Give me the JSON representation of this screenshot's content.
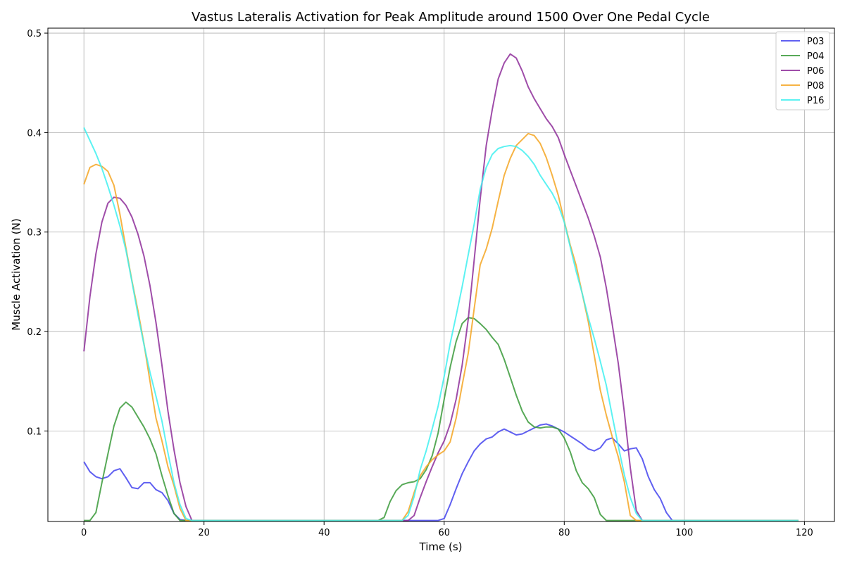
{
  "chart_data": {
    "type": "line",
    "title": "Vastus Lateralis Activation for Peak Amplitude around 1500 Over One Pedal Cycle",
    "xlabel": "Time (s)",
    "ylabel": "Muscle Activation (N)",
    "xlim": [
      -6,
      125
    ],
    "ylim": [
      0.009,
      0.505
    ],
    "x_ticks": [
      0,
      20,
      40,
      60,
      80,
      100,
      120
    ],
    "y_ticks": [
      0.1,
      0.2,
      0.3,
      0.4,
      0.5
    ],
    "x_tick_labels": [
      "0",
      "20",
      "40",
      "60",
      "80",
      "100",
      "120"
    ],
    "y_tick_labels": [
      "0.1",
      "0.2",
      "0.3",
      "0.4",
      "0.5"
    ],
    "grid": true,
    "legend_position": "top-right",
    "series": [
      {
        "name": "P03",
        "color": "#4444ee",
        "points": [
          [
            0,
            0.069
          ],
          [
            1,
            0.059
          ],
          [
            2,
            0.054
          ],
          [
            3,
            0.052
          ],
          [
            4,
            0.054
          ],
          [
            5,
            0.06
          ],
          [
            6,
            0.062
          ],
          [
            7,
            0.053
          ],
          [
            8,
            0.043
          ],
          [
            9,
            0.042
          ],
          [
            10,
            0.048
          ],
          [
            11,
            0.048
          ],
          [
            12,
            0.041
          ],
          [
            13,
            0.038
          ],
          [
            14,
            0.03
          ],
          [
            15,
            0.017
          ],
          [
            16,
            0.011
          ],
          [
            17,
            0.01
          ],
          [
            18,
            0.01
          ],
          [
            59,
            0.01
          ],
          [
            60,
            0.012
          ],
          [
            61,
            0.026
          ],
          [
            62,
            0.042
          ],
          [
            63,
            0.057
          ],
          [
            64,
            0.069
          ],
          [
            65,
            0.08
          ],
          [
            66,
            0.087
          ],
          [
            67,
            0.092
          ],
          [
            68,
            0.094
          ],
          [
            69,
            0.099
          ],
          [
            70,
            0.102
          ],
          [
            71,
            0.099
          ],
          [
            72,
            0.096
          ],
          [
            73,
            0.097
          ],
          [
            74,
            0.1
          ],
          [
            75,
            0.103
          ],
          [
            76,
            0.106
          ],
          [
            77,
            0.107
          ],
          [
            78,
            0.105
          ],
          [
            79,
            0.102
          ],
          [
            80,
            0.099
          ],
          [
            81,
            0.095
          ],
          [
            82,
            0.091
          ],
          [
            83,
            0.087
          ],
          [
            84,
            0.082
          ],
          [
            85,
            0.08
          ],
          [
            86,
            0.083
          ],
          [
            87,
            0.091
          ],
          [
            88,
            0.093
          ],
          [
            89,
            0.087
          ],
          [
            90,
            0.08
          ],
          [
            91,
            0.082
          ],
          [
            92,
            0.083
          ],
          [
            93,
            0.072
          ],
          [
            94,
            0.054
          ],
          [
            95,
            0.041
          ],
          [
            96,
            0.032
          ],
          [
            97,
            0.018
          ],
          [
            98,
            0.01
          ],
          [
            119,
            0.01
          ]
        ]
      },
      {
        "name": "P04",
        "color": "#3a9a3a",
        "points": [
          [
            0,
            0.01
          ],
          [
            1,
            0.01
          ],
          [
            2,
            0.018
          ],
          [
            3,
            0.048
          ],
          [
            4,
            0.077
          ],
          [
            5,
            0.105
          ],
          [
            6,
            0.123
          ],
          [
            7,
            0.129
          ],
          [
            8,
            0.124
          ],
          [
            9,
            0.114
          ],
          [
            10,
            0.104
          ],
          [
            11,
            0.092
          ],
          [
            12,
            0.077
          ],
          [
            13,
            0.055
          ],
          [
            14,
            0.035
          ],
          [
            15,
            0.017
          ],
          [
            16,
            0.01
          ],
          [
            49,
            0.01
          ],
          [
            50,
            0.013
          ],
          [
            51,
            0.029
          ],
          [
            52,
            0.04
          ],
          [
            53,
            0.046
          ],
          [
            54,
            0.048
          ],
          [
            55,
            0.049
          ],
          [
            56,
            0.052
          ],
          [
            57,
            0.061
          ],
          [
            58,
            0.075
          ],
          [
            59,
            0.098
          ],
          [
            60,
            0.132
          ],
          [
            61,
            0.164
          ],
          [
            62,
            0.19
          ],
          [
            63,
            0.208
          ],
          [
            64,
            0.214
          ],
          [
            65,
            0.213
          ],
          [
            66,
            0.208
          ],
          [
            67,
            0.202
          ],
          [
            68,
            0.194
          ],
          [
            69,
            0.187
          ],
          [
            70,
            0.172
          ],
          [
            71,
            0.154
          ],
          [
            72,
            0.136
          ],
          [
            73,
            0.12
          ],
          [
            74,
            0.109
          ],
          [
            75,
            0.104
          ],
          [
            76,
            0.103
          ],
          [
            77,
            0.104
          ],
          [
            78,
            0.104
          ],
          [
            79,
            0.102
          ],
          [
            80,
            0.093
          ],
          [
            81,
            0.079
          ],
          [
            82,
            0.06
          ],
          [
            83,
            0.048
          ],
          [
            84,
            0.042
          ],
          [
            85,
            0.033
          ],
          [
            86,
            0.016
          ],
          [
            87,
            0.01
          ],
          [
            119,
            0.01
          ]
        ]
      },
      {
        "name": "P06",
        "color": "#8e2e9a",
        "points": [
          [
            0,
            0.18
          ],
          [
            1,
            0.235
          ],
          [
            2,
            0.278
          ],
          [
            3,
            0.31
          ],
          [
            4,
            0.329
          ],
          [
            5,
            0.335
          ],
          [
            6,
            0.334
          ],
          [
            7,
            0.327
          ],
          [
            8,
            0.315
          ],
          [
            9,
            0.298
          ],
          [
            10,
            0.276
          ],
          [
            11,
            0.246
          ],
          [
            12,
            0.209
          ],
          [
            13,
            0.166
          ],
          [
            14,
            0.12
          ],
          [
            15,
            0.081
          ],
          [
            16,
            0.048
          ],
          [
            17,
            0.024
          ],
          [
            18,
            0.01
          ],
          [
            53,
            0.01
          ],
          [
            54,
            0.01
          ],
          [
            55,
            0.015
          ],
          [
            56,
            0.033
          ],
          [
            57,
            0.049
          ],
          [
            58,
            0.064
          ],
          [
            59,
            0.078
          ],
          [
            60,
            0.09
          ],
          [
            61,
            0.107
          ],
          [
            62,
            0.132
          ],
          [
            63,
            0.166
          ],
          [
            64,
            0.212
          ],
          [
            65,
            0.272
          ],
          [
            66,
            0.333
          ],
          [
            67,
            0.387
          ],
          [
            68,
            0.423
          ],
          [
            69,
            0.454
          ],
          [
            70,
            0.47
          ],
          [
            71,
            0.479
          ],
          [
            72,
            0.475
          ],
          [
            73,
            0.462
          ],
          [
            74,
            0.446
          ],
          [
            75,
            0.434
          ],
          [
            76,
            0.424
          ],
          [
            77,
            0.414
          ],
          [
            78,
            0.406
          ],
          [
            79,
            0.395
          ],
          [
            80,
            0.378
          ],
          [
            81,
            0.362
          ],
          [
            82,
            0.346
          ],
          [
            83,
            0.33
          ],
          [
            84,
            0.314
          ],
          [
            85,
            0.296
          ],
          [
            86,
            0.275
          ],
          [
            87,
            0.244
          ],
          [
            88,
            0.207
          ],
          [
            89,
            0.168
          ],
          [
            90,
            0.119
          ],
          [
            91,
            0.063
          ],
          [
            92,
            0.02
          ],
          [
            93,
            0.01
          ],
          [
            119,
            0.01
          ]
        ]
      },
      {
        "name": "P08",
        "color": "#f5a623",
        "points": [
          [
            0,
            0.348
          ],
          [
            1,
            0.365
          ],
          [
            2,
            0.368
          ],
          [
            3,
            0.366
          ],
          [
            4,
            0.361
          ],
          [
            5,
            0.347
          ],
          [
            6,
            0.318
          ],
          [
            7,
            0.284
          ],
          [
            8,
            0.251
          ],
          [
            9,
            0.221
          ],
          [
            10,
            0.188
          ],
          [
            11,
            0.15
          ],
          [
            12,
            0.113
          ],
          [
            13,
            0.09
          ],
          [
            14,
            0.064
          ],
          [
            15,
            0.045
          ],
          [
            16,
            0.022
          ],
          [
            17,
            0.01
          ],
          [
            52,
            0.01
          ],
          [
            53,
            0.01
          ],
          [
            54,
            0.019
          ],
          [
            55,
            0.038
          ],
          [
            56,
            0.055
          ],
          [
            57,
            0.064
          ],
          [
            58,
            0.071
          ],
          [
            59,
            0.076
          ],
          [
            60,
            0.08
          ],
          [
            61,
            0.089
          ],
          [
            62,
            0.113
          ],
          [
            63,
            0.146
          ],
          [
            64,
            0.178
          ],
          [
            65,
            0.223
          ],
          [
            66,
            0.267
          ],
          [
            67,
            0.283
          ],
          [
            68,
            0.304
          ],
          [
            69,
            0.331
          ],
          [
            70,
            0.357
          ],
          [
            71,
            0.374
          ],
          [
            72,
            0.387
          ],
          [
            73,
            0.393
          ],
          [
            74,
            0.399
          ],
          [
            75,
            0.397
          ],
          [
            76,
            0.389
          ],
          [
            77,
            0.375
          ],
          [
            78,
            0.357
          ],
          [
            79,
            0.337
          ],
          [
            80,
            0.311
          ],
          [
            81,
            0.287
          ],
          [
            82,
            0.266
          ],
          [
            83,
            0.238
          ],
          [
            84,
            0.21
          ],
          [
            85,
            0.176
          ],
          [
            86,
            0.141
          ],
          [
            87,
            0.116
          ],
          [
            88,
            0.094
          ],
          [
            89,
            0.074
          ],
          [
            90,
            0.049
          ],
          [
            91,
            0.015
          ],
          [
            92,
            0.01
          ],
          [
            119,
            0.01
          ]
        ]
      },
      {
        "name": "P16",
        "color": "#40f0f0",
        "points": [
          [
            0,
            0.405
          ],
          [
            1,
            0.392
          ],
          [
            2,
            0.379
          ],
          [
            3,
            0.364
          ],
          [
            4,
            0.346
          ],
          [
            5,
            0.327
          ],
          [
            6,
            0.306
          ],
          [
            7,
            0.282
          ],
          [
            8,
            0.25
          ],
          [
            9,
            0.217
          ],
          [
            10,
            0.187
          ],
          [
            11,
            0.159
          ],
          [
            12,
            0.135
          ],
          [
            13,
            0.11
          ],
          [
            14,
            0.078
          ],
          [
            15,
            0.048
          ],
          [
            16,
            0.026
          ],
          [
            17,
            0.012
          ],
          [
            18,
            0.01
          ],
          [
            53,
            0.01
          ],
          [
            54,
            0.015
          ],
          [
            55,
            0.034
          ],
          [
            56,
            0.061
          ],
          [
            57,
            0.08
          ],
          [
            58,
            0.102
          ],
          [
            59,
            0.125
          ],
          [
            60,
            0.155
          ],
          [
            61,
            0.188
          ],
          [
            62,
            0.216
          ],
          [
            63,
            0.245
          ],
          [
            64,
            0.277
          ],
          [
            65,
            0.308
          ],
          [
            66,
            0.343
          ],
          [
            67,
            0.365
          ],
          [
            68,
            0.378
          ],
          [
            69,
            0.384
          ],
          [
            70,
            0.386
          ],
          [
            71,
            0.387
          ],
          [
            72,
            0.386
          ],
          [
            73,
            0.382
          ],
          [
            74,
            0.376
          ],
          [
            75,
            0.368
          ],
          [
            76,
            0.357
          ],
          [
            77,
            0.348
          ],
          [
            78,
            0.339
          ],
          [
            79,
            0.327
          ],
          [
            80,
            0.31
          ],
          [
            81,
            0.285
          ],
          [
            82,
            0.26
          ],
          [
            83,
            0.238
          ],
          [
            84,
            0.214
          ],
          [
            85,
            0.193
          ],
          [
            86,
            0.17
          ],
          [
            87,
            0.146
          ],
          [
            88,
            0.115
          ],
          [
            89,
            0.085
          ],
          [
            90,
            0.056
          ],
          [
            91,
            0.033
          ],
          [
            92,
            0.017
          ],
          [
            93,
            0.01
          ],
          [
            119,
            0.01
          ]
        ]
      }
    ]
  }
}
